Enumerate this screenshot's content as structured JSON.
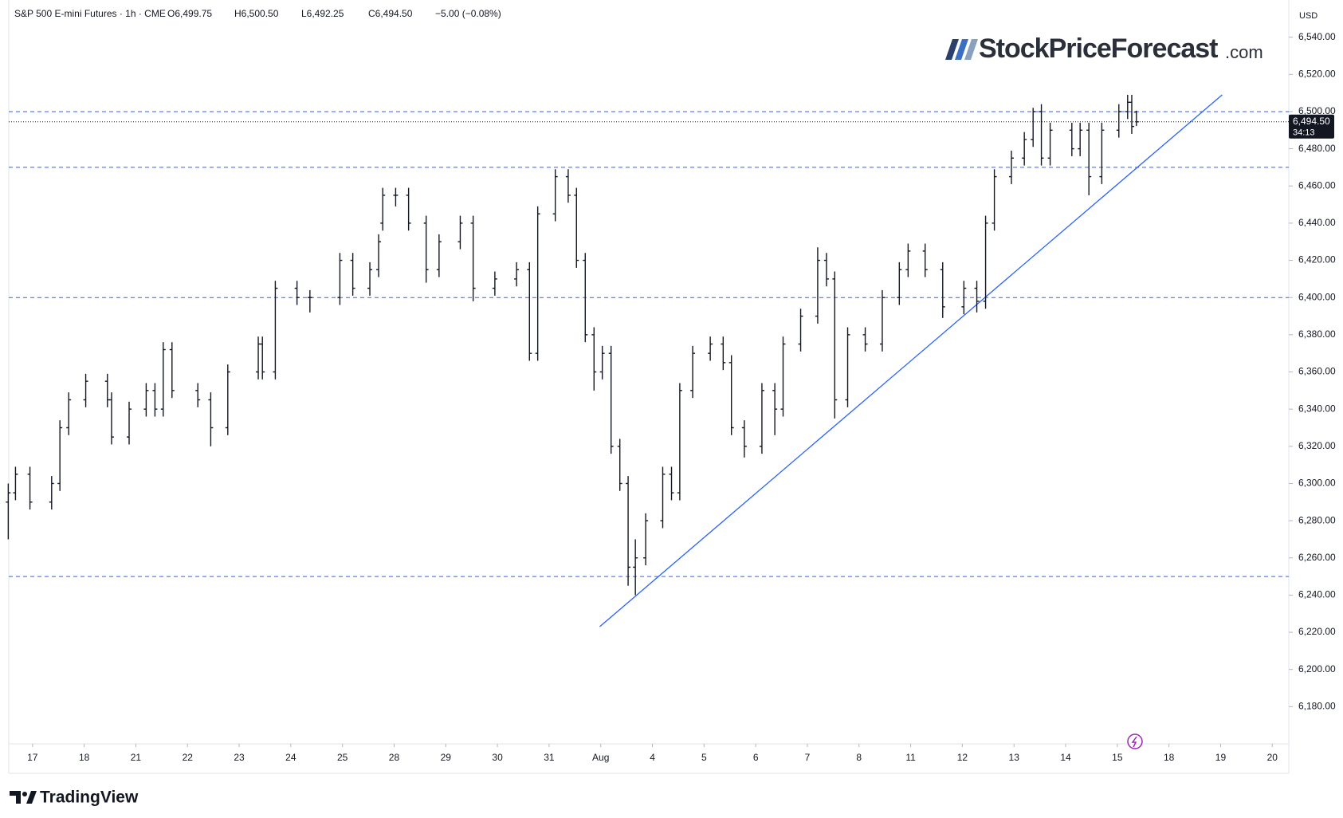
{
  "chart_data": {
    "type": "ohlc",
    "title": "S&P 500 E-mini Futures · 1h · CME",
    "header": {
      "open": "O6,499.75",
      "high": "H6,500.50",
      "low": "L6,492.25",
      "close": "C6,494.50",
      "change": "−5.00 (−0.08%)"
    },
    "currency": "USD",
    "brand": {
      "name": "StockPriceForecast",
      "suffix": ".com"
    },
    "footer": "TradingView",
    "color": "#131722",
    "level_color": "#2962ff",
    "xlim": [
      -0.46,
      24.32
    ],
    "ylim": [
      6160,
      6560
    ],
    "xticks": [
      {
        "value": 0,
        "label": "17"
      },
      {
        "value": 1,
        "label": "18"
      },
      {
        "value": 2,
        "label": "21"
      },
      {
        "value": 3,
        "label": "22"
      },
      {
        "value": 4,
        "label": "23"
      },
      {
        "value": 5,
        "label": "24"
      },
      {
        "value": 6,
        "label": "25"
      },
      {
        "value": 7,
        "label": "28"
      },
      {
        "value": 8,
        "label": "29"
      },
      {
        "value": 9,
        "label": "30"
      },
      {
        "value": 10,
        "label": "31"
      },
      {
        "value": 11,
        "label": "Aug"
      },
      {
        "value": 12,
        "label": "4"
      },
      {
        "value": 13,
        "label": "5"
      },
      {
        "value": 14,
        "label": "6"
      },
      {
        "value": 15,
        "label": "7"
      },
      {
        "value": 16,
        "label": "8"
      },
      {
        "value": 17,
        "label": "11"
      },
      {
        "value": 18,
        "label": "12"
      },
      {
        "value": 19,
        "label": "13"
      },
      {
        "value": 20,
        "label": "14"
      },
      {
        "value": 21,
        "label": "15"
      },
      {
        "value": 22,
        "label": "18"
      },
      {
        "value": 23,
        "label": "19"
      },
      {
        "value": 24,
        "label": "20"
      }
    ],
    "yticks": [
      {
        "value": 6180,
        "label": "6,180.00"
      },
      {
        "value": 6200,
        "label": "6,200.00"
      },
      {
        "value": 6220,
        "label": "6,220.00"
      },
      {
        "value": 6240,
        "label": "6,240.00"
      },
      {
        "value": 6260,
        "label": "6,260.00"
      },
      {
        "value": 6280,
        "label": "6,280.00"
      },
      {
        "value": 6300,
        "label": "6,300.00"
      },
      {
        "value": 6320,
        "label": "6,320.00"
      },
      {
        "value": 6340,
        "label": "6,340.00"
      },
      {
        "value": 6360,
        "label": "6,360.00"
      },
      {
        "value": 6380,
        "label": "6,380.00"
      },
      {
        "value": 6400,
        "label": "6,400.00"
      },
      {
        "value": 6420,
        "label": "6,420.00"
      },
      {
        "value": 6440,
        "label": "6,440.00"
      },
      {
        "value": 6460,
        "label": "6,460.00"
      },
      {
        "value": 6480,
        "label": "6,480.00"
      },
      {
        "value": 6500,
        "label": "6,500.00"
      },
      {
        "value": 6520,
        "label": "6,520.00"
      },
      {
        "value": 6540,
        "label": "6,540.00"
      }
    ],
    "levels": [
      6500,
      6470,
      6400,
      6250
    ],
    "trendline": [
      [
        10.98,
        6223
      ],
      [
        23.03,
        6509
      ]
    ],
    "last_price": {
      "value": 6494.5,
      "label": "6,494.50"
    },
    "countdown": "34:13",
    "bars": [
      [
        -0.47,
        6290,
        6300,
        6270,
        6295
      ],
      [
        -0.33,
        6295,
        6309,
        6291,
        6305
      ],
      [
        -0.05,
        6305,
        6309,
        6286,
        6290
      ],
      [
        0.37,
        6290,
        6304,
        6286,
        6300
      ],
      [
        0.53,
        6300,
        6334,
        6296,
        6330
      ],
      [
        0.7,
        6330,
        6349,
        6326,
        6345
      ],
      [
        1.03,
        6345,
        6359,
        6341,
        6355
      ],
      [
        1.45,
        6355,
        6359,
        6341,
        6345
      ],
      [
        1.53,
        6345,
        6349,
        6321,
        6325
      ],
      [
        1.87,
        6325,
        6344,
        6321,
        6340
      ],
      [
        2.2,
        6340,
        6354,
        6336,
        6350
      ],
      [
        2.37,
        6350,
        6354,
        6336,
        6340
      ],
      [
        2.53,
        6340,
        6376,
        6336,
        6372
      ],
      [
        2.7,
        6372,
        6376,
        6346,
        6350
      ],
      [
        3.2,
        6350,
        6354,
        6341,
        6345
      ],
      [
        3.45,
        6345,
        6349,
        6320,
        6330
      ],
      [
        3.78,
        6330,
        6364,
        6326,
        6360
      ],
      [
        4.37,
        6360,
        6379,
        6356,
        6375
      ],
      [
        4.45,
        6375,
        6379,
        6356,
        6360
      ],
      [
        4.7,
        6360,
        6409,
        6356,
        6405
      ],
      [
        5.12,
        6405,
        6409,
        6396,
        6400
      ],
      [
        5.37,
        6400,
        6404,
        6392,
        6400
      ],
      [
        5.95,
        6400,
        6424,
        6396,
        6420
      ],
      [
        6.2,
        6420,
        6424,
        6401,
        6405
      ],
      [
        6.53,
        6405,
        6419,
        6401,
        6415
      ],
      [
        6.7,
        6415,
        6434,
        6411,
        6430
      ],
      [
        6.78,
        6440,
        6459,
        6436,
        6455
      ],
      [
        7.03,
        6455,
        6459,
        6449,
        6455
      ],
      [
        7.28,
        6455,
        6459,
        6436,
        6440
      ],
      [
        7.62,
        6440,
        6444,
        6408,
        6415
      ],
      [
        7.87,
        6415,
        6434,
        6411,
        6430
      ],
      [
        8.28,
        6430,
        6444,
        6426,
        6440
      ],
      [
        8.53,
        6440,
        6444,
        6398,
        6405
      ],
      [
        8.95,
        6405,
        6414,
        6401,
        6410
      ],
      [
        9.37,
        6410,
        6419,
        6406,
        6415
      ],
      [
        9.62,
        6415,
        6419,
        6366,
        6370
      ],
      [
        9.78,
        6370,
        6449,
        6366,
        6445
      ],
      [
        10.12,
        6445,
        6469,
        6441,
        6465
      ],
      [
        10.37,
        6465,
        6469,
        6451,
        6455
      ],
      [
        10.53,
        6455,
        6459,
        6416,
        6420
      ],
      [
        10.7,
        6420,
        6424,
        6376,
        6380
      ],
      [
        10.87,
        6380,
        6384,
        6350,
        6360
      ],
      [
        11.03,
        6360,
        6374,
        6356,
        6370
      ],
      [
        11.2,
        6370,
        6374,
        6316,
        6320
      ],
      [
        11.37,
        6320,
        6324,
        6296,
        6300
      ],
      [
        11.53,
        6300,
        6304,
        6245,
        6255
      ],
      [
        11.67,
        6255,
        6270,
        6240,
        6260
      ],
      [
        11.87,
        6260,
        6284,
        6256,
        6280
      ],
      [
        12.2,
        6280,
        6309,
        6276,
        6305
      ],
      [
        12.37,
        6305,
        6309,
        6291,
        6295
      ],
      [
        12.53,
        6295,
        6354,
        6291,
        6350
      ],
      [
        12.78,
        6350,
        6374,
        6346,
        6370
      ],
      [
        13.12,
        6370,
        6379,
        6366,
        6375
      ],
      [
        13.37,
        6375,
        6379,
        6361,
        6365
      ],
      [
        13.53,
        6365,
        6369,
        6326,
        6330
      ],
      [
        13.78,
        6330,
        6334,
        6314,
        6320
      ],
      [
        14.12,
        6320,
        6354,
        6316,
        6350
      ],
      [
        14.37,
        6350,
        6354,
        6326,
        6340
      ],
      [
        14.53,
        6340,
        6379,
        6336,
        6375
      ],
      [
        14.87,
        6375,
        6394,
        6371,
        6390
      ],
      [
        15.2,
        6390,
        6427,
        6386,
        6420
      ],
      [
        15.37,
        6420,
        6424,
        6406,
        6410
      ],
      [
        15.53,
        6410,
        6414,
        6335,
        6345
      ],
      [
        15.78,
        6345,
        6384,
        6341,
        6380
      ],
      [
        16.12,
        6380,
        6384,
        6371,
        6375
      ],
      [
        16.45,
        6375,
        6404,
        6371,
        6400
      ],
      [
        16.78,
        6400,
        6419,
        6396,
        6415
      ],
      [
        16.95,
        6415,
        6429,
        6411,
        6425
      ],
      [
        17.28,
        6425,
        6429,
        6411,
        6415
      ],
      [
        17.62,
        6415,
        6419,
        6389,
        6395
      ],
      [
        18.03,
        6395,
        6409,
        6391,
        6405
      ],
      [
        18.28,
        6405,
        6409,
        6392,
        6398
      ],
      [
        18.45,
        6398,
        6444,
        6394,
        6440
      ],
      [
        18.62,
        6440,
        6469,
        6436,
        6465
      ],
      [
        18.95,
        6465,
        6479,
        6461,
        6475
      ],
      [
        19.2,
        6475,
        6489,
        6471,
        6485
      ],
      [
        19.37,
        6485,
        6502,
        6481,
        6500
      ],
      [
        19.53,
        6500,
        6504,
        6471,
        6475
      ],
      [
        19.7,
        6475,
        6494,
        6471,
        6490
      ],
      [
        20.12,
        6490,
        6494,
        6476,
        6480
      ],
      [
        20.28,
        6480,
        6494,
        6476,
        6490
      ],
      [
        20.45,
        6490,
        6494,
        6455,
        6465
      ],
      [
        20.7,
        6465,
        6494,
        6461,
        6490
      ],
      [
        21.03,
        6490,
        6504,
        6486,
        6500
      ],
      [
        21.2,
        6500,
        6509,
        6496,
        6505
      ],
      [
        21.28,
        6505,
        6509,
        6488,
        6492
      ],
      [
        21.37,
        6499.75,
        6500.5,
        6492.25,
        6494.5
      ]
    ]
  }
}
